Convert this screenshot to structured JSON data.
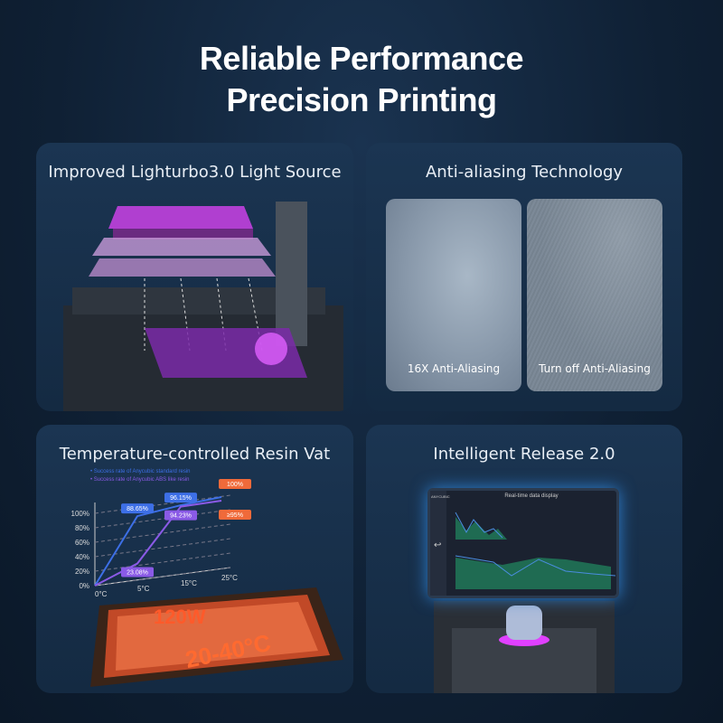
{
  "headline": {
    "line1": "Reliable Performance",
    "line2": "Precision Printing"
  },
  "panels": {
    "light_source": {
      "title": "Improved Lighturbo3.0 Light Source"
    },
    "anti_aliasing": {
      "title": "Anti-aliasing Technology",
      "left_label": "16X Anti-Aliasing",
      "right_label": "Turn off Anti-Aliasing"
    },
    "resin_vat": {
      "title": "Temperature-controlled Resin Vat",
      "power": "120W",
      "temp_range": "20-40°C",
      "chart": {
        "legend": [
          "Success rate of Anycubic standard resin",
          "Success rate of Anycubic ABS like resin"
        ],
        "y_ticks": [
          "0%",
          "20%",
          "40%",
          "60%",
          "80%",
          "100%"
        ],
        "x_ticks": [
          "0°C",
          "5°C",
          "15°C",
          "25°C"
        ],
        "series": [
          {
            "name": "Success rate of Anycubic standard resin",
            "color": "#3d6fe6",
            "values": [
              0,
              88.65,
              96.15,
              100
            ],
            "labels": [
              "",
              "88.65%",
              "96.15%",
              "100%"
            ]
          },
          {
            "name": "Success rate of Anycubic ABS like resin",
            "color": "#8a5ae6",
            "values": [
              0,
              23.08,
              94.23,
              95
            ],
            "labels": [
              "",
              "23.08%",
              "94.23%",
              "≥95%"
            ]
          }
        ]
      }
    },
    "release": {
      "title": "Intelligent Release 2.0",
      "screen_brand": "ANYCUBIC",
      "screen_title": "Real-time data display"
    }
  }
}
